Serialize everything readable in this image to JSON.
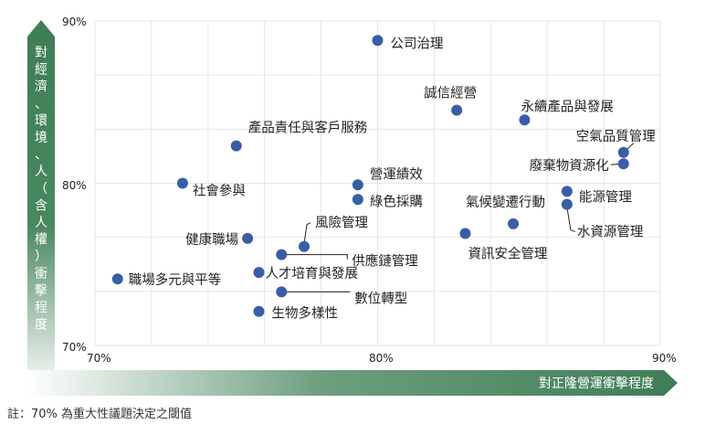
{
  "chart_data": {
    "type": "scatter",
    "title": "",
    "xlabel": "對正隆營運衝擊程度",
    "ylabel": "對經濟、環境、人（含人權）衝擊程度",
    "xlim": [
      70,
      90
    ],
    "ylim": [
      70,
      90
    ],
    "x_ticks": [
      "70%",
      "80%",
      "90%"
    ],
    "y_ticks": [
      "70%",
      "80%",
      "90%"
    ],
    "grid": true,
    "point_color": "#3a5da8",
    "axis_color": "#3f7d56",
    "points": [
      {
        "label": "公司治理",
        "x": 80.0,
        "y": 88.8
      },
      {
        "label": "誠信經營",
        "x": 82.8,
        "y": 84.5
      },
      {
        "label": "永續產品與發展",
        "x": 85.2,
        "y": 83.9
      },
      {
        "label": "產品責任與客戶服務",
        "x": 75.0,
        "y": 82.3
      },
      {
        "label": "空氣品質管理",
        "x": 88.7,
        "y": 81.9
      },
      {
        "label": "廢棄物資源化",
        "x": 88.7,
        "y": 81.2
      },
      {
        "label": "社會參與",
        "x": 73.1,
        "y": 80.0
      },
      {
        "label": "營運績效",
        "x": 79.3,
        "y": 79.9
      },
      {
        "label": "綠色採購",
        "x": 79.3,
        "y": 79.0
      },
      {
        "label": "能源管理",
        "x": 86.7,
        "y": 79.5
      },
      {
        "label": "水資源管理",
        "x": 86.7,
        "y": 78.7
      },
      {
        "label": "氣候變遷行動",
        "x": 84.8,
        "y": 77.5
      },
      {
        "label": "資訊安全管理",
        "x": 83.1,
        "y": 76.9
      },
      {
        "label": "健康職場",
        "x": 75.4,
        "y": 76.6
      },
      {
        "label": "風險管理",
        "x": 77.4,
        "y": 76.1
      },
      {
        "label": "供應鏈管理",
        "x": 76.6,
        "y": 75.6
      },
      {
        "label": "人才培育與發展",
        "x": 75.8,
        "y": 74.5
      },
      {
        "label": "職場多元與平等",
        "x": 70.8,
        "y": 74.1
      },
      {
        "label": "數位轉型",
        "x": 76.6,
        "y": 73.3
      },
      {
        "label": "生物多樣性",
        "x": 75.8,
        "y": 72.1
      }
    ]
  },
  "footnote": "註：70% 為重大性議題決定之閾值"
}
